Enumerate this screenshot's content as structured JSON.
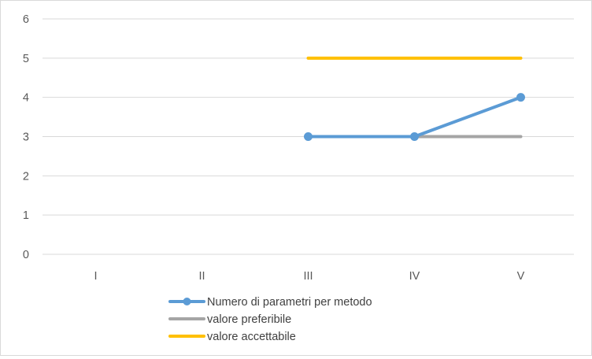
{
  "chart_data": {
    "type": "line",
    "title": "",
    "xlabel": "",
    "ylabel": "",
    "categories": [
      "I",
      "II",
      "III",
      "IV",
      "V"
    ],
    "ylim": [
      0,
      6
    ],
    "yticks": [
      0,
      1,
      2,
      3,
      4,
      5,
      6
    ],
    "grid": true,
    "legend_position": "bottom",
    "series": [
      {
        "name": "Numero di parametri per metodo",
        "values": [
          null,
          null,
          3,
          3,
          4
        ],
        "color": "#5b9bd5",
        "markers": true
      },
      {
        "name": "valore preferibile",
        "values": [
          null,
          null,
          3,
          3,
          3
        ],
        "color": "#a5a5a5",
        "markers": false
      },
      {
        "name": "valore accettabile",
        "values": [
          null,
          null,
          5,
          5,
          5
        ],
        "color": "#ffc000",
        "markers": false
      }
    ]
  }
}
